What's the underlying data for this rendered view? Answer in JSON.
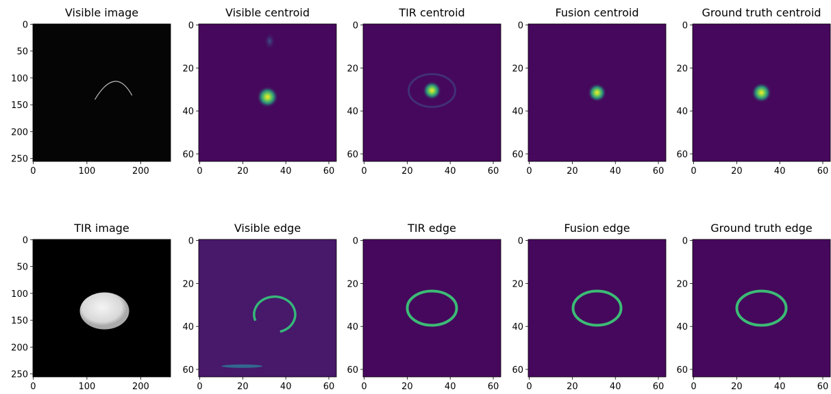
{
  "chart_data": [
    {
      "type": "image",
      "title": "Visible image",
      "xlim": [
        -0.5,
        255.5
      ],
      "ylim": [
        255.5,
        -0.5
      ],
      "xticks": [
        0,
        100,
        200
      ],
      "yticks": [
        0,
        50,
        100,
        150,
        200,
        250
      ]
    },
    {
      "type": "image",
      "title": "Visible centroid",
      "xlim": [
        -0.5,
        63.5
      ],
      "ylim": [
        63.5,
        -0.5
      ],
      "xticks": [
        0,
        20,
        40,
        60
      ],
      "yticks": [
        0,
        20,
        40,
        60
      ]
    },
    {
      "type": "image",
      "title": "TIR centroid",
      "xlim": [
        -0.5,
        63.5
      ],
      "ylim": [
        63.5,
        -0.5
      ],
      "xticks": [
        0,
        20,
        40,
        60
      ],
      "yticks": [
        0,
        20,
        40,
        60
      ]
    },
    {
      "type": "image",
      "title": "Fusion centroid",
      "xlim": [
        -0.5,
        63.5
      ],
      "ylim": [
        63.5,
        -0.5
      ],
      "xticks": [
        0,
        20,
        40,
        60
      ],
      "yticks": [
        0,
        20,
        40,
        60
      ]
    },
    {
      "type": "image",
      "title": "Ground truth centroid",
      "xlim": [
        -0.5,
        63.5
      ],
      "ylim": [
        63.5,
        -0.5
      ],
      "xticks": [
        0,
        20,
        40,
        60
      ],
      "yticks": [
        0,
        20,
        40,
        60
      ]
    },
    {
      "type": "image",
      "title": "TIR image",
      "xlim": [
        -0.5,
        255.5
      ],
      "ylim": [
        255.5,
        -0.5
      ],
      "xticks": [
        0,
        100,
        200
      ],
      "yticks": [
        0,
        50,
        100,
        150,
        200,
        250
      ]
    },
    {
      "type": "image",
      "title": "Visible edge",
      "xlim": [
        -0.5,
        63.5
      ],
      "ylim": [
        63.5,
        -0.5
      ],
      "xticks": [
        0,
        20,
        40,
        60
      ],
      "yticks": [
        0,
        20,
        40,
        60
      ]
    },
    {
      "type": "image",
      "title": "TIR edge",
      "xlim": [
        -0.5,
        63.5
      ],
      "ylim": [
        63.5,
        -0.5
      ],
      "xticks": [
        0,
        20,
        40,
        60
      ],
      "yticks": [
        0,
        20,
        40,
        60
      ]
    },
    {
      "type": "image",
      "title": "Fusion edge",
      "xlim": [
        -0.5,
        63.5
      ],
      "ylim": [
        63.5,
        -0.5
      ],
      "xticks": [
        0,
        20,
        40,
        60
      ],
      "yticks": [
        0,
        20,
        40,
        60
      ]
    },
    {
      "type": "image",
      "title": "Ground truth edge",
      "xlim": [
        -0.5,
        63.5
      ],
      "ylim": [
        63.5,
        -0.5
      ],
      "xticks": [
        0,
        20,
        40,
        60
      ],
      "yticks": [
        0,
        20,
        40,
        60
      ]
    }
  ]
}
